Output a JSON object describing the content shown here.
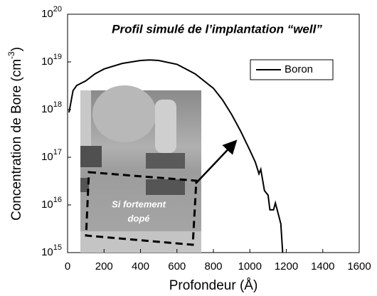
{
  "chart_data": {
    "type": "line",
    "title": "Profil simulé de l’implantation “well”",
    "x_label": "Profondeur (Å)",
    "y_label": {
      "text": "Concentration de Bore (cm",
      "sup": "-3",
      "end": ")"
    },
    "log_scale": true,
    "legend_position": "upper right",
    "xlim": [
      0,
      1600
    ],
    "xticks": [
      0,
      200,
      400,
      600,
      800,
      1000,
      1200,
      1400,
      1600
    ],
    "ylim": [
      1000000000000000.0,
      1e+20
    ],
    "yticks": [
      {
        "value": 1000000000000000.0,
        "label": "10",
        "exponent": "15"
      },
      {
        "value": 1e+16,
        "label": "10",
        "exponent": "16"
      },
      {
        "value": 1e+17,
        "label": "10",
        "exponent": "17"
      },
      {
        "value": 1e+18,
        "label": "10",
        "exponent": "18"
      },
      {
        "value": 1e+19,
        "label": "10",
        "exponent": "19"
      },
      {
        "value": 1e+20,
        "label": "10",
        "exponent": "20"
      }
    ],
    "x": [
      8,
      30,
      50,
      100,
      150,
      200,
      300,
      400,
      450,
      500,
      600,
      700,
      800,
      850,
      900,
      950,
      1000,
      1030,
      1050,
      1060,
      1080,
      1100,
      1110,
      1130,
      1140,
      1150,
      1170,
      1180
    ],
    "series": [
      {
        "name": "Boron",
        "color": "#000000",
        "values": [
          8.7e+17,
          2.5e+18,
          3.2e+18,
          4e+18,
          5.6e+18,
          7.1e+18,
          9.3e+18,
          1.07e+19,
          1.1e+19,
          1.07e+19,
          8.9e+18,
          5.6e+18,
          2.8e+18,
          1.6e+18,
          7.9e+17,
          3.5e+17,
          1.4e+17,
          7.9e+16,
          4.5e+16,
          5.6e+16,
          2e+16,
          1.6e+16,
          7900000000000000.0,
          7900000000000000.0,
          1.1e+16,
          7900000000000000.0,
          4000000000000000.0,
          1000000000000000.0
        ]
      }
    ],
    "annotation": [
      "Si fortement",
      "dopé"
    ]
  }
}
